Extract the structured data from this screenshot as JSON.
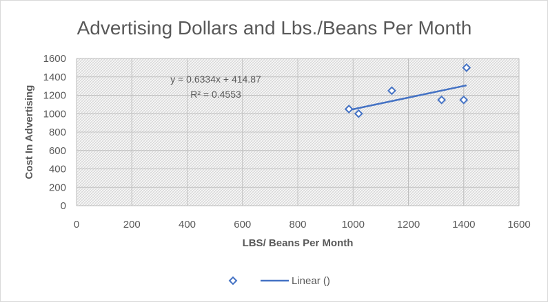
{
  "chart_data": {
    "type": "scatter",
    "title": "Advertising Dollars and Lbs./Beans Per Month",
    "xlabel": "LBS/ Beans Per Month",
    "ylabel": "Cost In Advertising",
    "xlim": [
      0,
      1600
    ],
    "ylim": [
      0,
      1600
    ],
    "x_ticks": [
      0,
      200,
      400,
      600,
      800,
      1000,
      1200,
      1400,
      1600
    ],
    "y_ticks": [
      0,
      200,
      400,
      600,
      800,
      1000,
      1200,
      1400,
      1600
    ],
    "grid": true,
    "series": [
      {
        "name": "",
        "marker": "diamond",
        "color": "#4472c4",
        "x": [
          985,
          1020,
          1140,
          1320,
          1400,
          1410
        ],
        "y": [
          1050,
          1000,
          1250,
          1150,
          1150,
          1500
        ]
      }
    ],
    "trendline": {
      "name": "Linear ()",
      "color": "#4472c4",
      "x_start": 985,
      "x_end": 1410,
      "slope": 0.6334,
      "intercept": 414.87,
      "equation": "y = 0.6334x + 414.87",
      "r_squared": "R² = 0.4553"
    },
    "legend": {
      "position": "bottom",
      "entries": [
        "",
        "Linear ()"
      ]
    }
  }
}
